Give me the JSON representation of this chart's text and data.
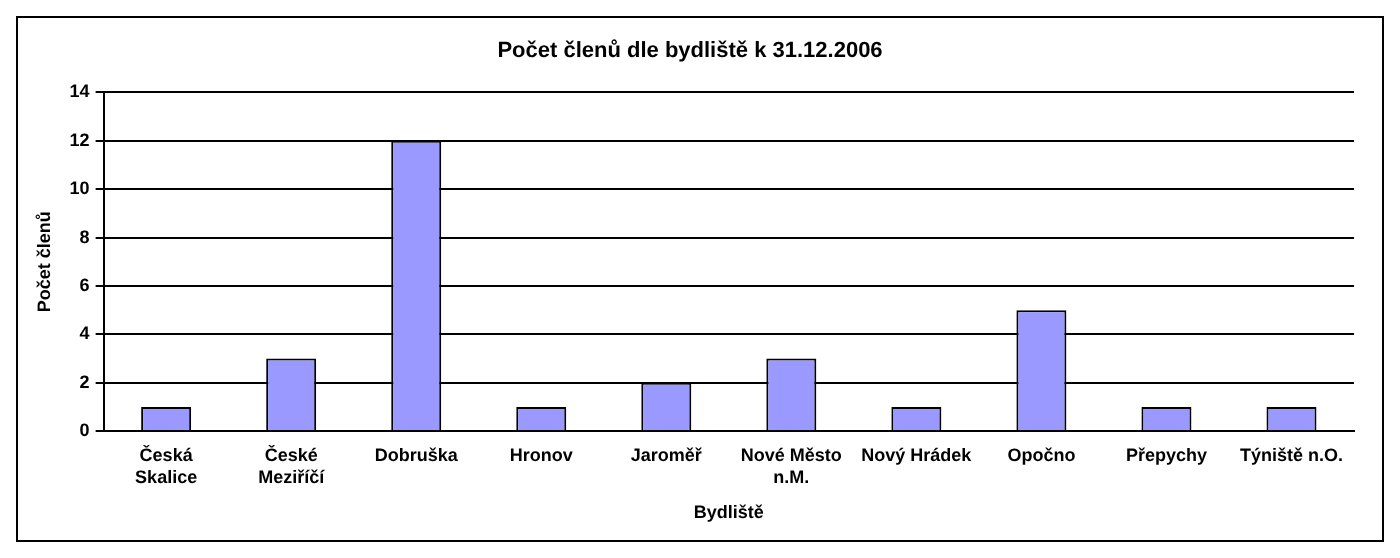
{
  "chart_data": {
    "type": "bar",
    "title": "Počet členů dle bydliště k 31.12.2006",
    "xlabel": "Bydliště",
    "ylabel": "Počet členů",
    "categories": [
      "Česká Skalice",
      "České Meziříčí",
      "Dobruška",
      "Hronov",
      "Jaroměř",
      "Nové Město n.M.",
      "Nový Hrádek",
      "Opočno",
      "Přepychy",
      "Týniště n.O."
    ],
    "values": [
      1,
      3,
      12,
      1,
      2,
      3,
      1,
      5,
      1,
      1
    ],
    "color": "#9999ff",
    "ylim": [
      0,
      14
    ],
    "yticks": [
      0,
      2,
      4,
      6,
      8,
      10,
      12,
      14
    ],
    "grid": "y",
    "legend": false
  }
}
